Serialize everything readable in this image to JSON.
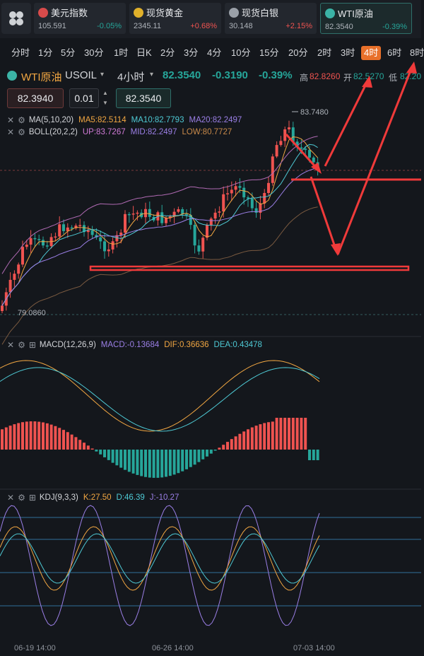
{
  "tickers": [
    {
      "name": "美元指数",
      "price": "105.591",
      "change": "-0.05%",
      "dir": "dn",
      "flag_color": "#d84b4b",
      "icon": "us-flag-icon"
    },
    {
      "name": "现货黄金",
      "price": "2345.11",
      "change": "+0.68%",
      "dir": "up",
      "flag_color": "#e0b02a",
      "icon": "gold-coin-icon"
    },
    {
      "name": "现货白银",
      "price": "30.148",
      "change": "+2.15%",
      "dir": "up",
      "flag_color": "#9aa0a8",
      "icon": "silver-coin-icon"
    },
    {
      "name": "WTI原油",
      "price": "82.3540",
      "change": "-0.39%",
      "dir": "dn",
      "flag_color": "#3bb3a6",
      "icon": "oil-barrel-icon"
    }
  ],
  "periods": [
    "分时",
    "1分",
    "5分",
    "30分",
    "1时",
    "日K",
    "2分",
    "3分",
    "4分",
    "10分",
    "15分",
    "20分",
    "2时",
    "3时",
    "4时",
    "6时",
    "8时"
  ],
  "selected_period": "4时",
  "instrument": {
    "name": "WTI原油",
    "code": "USOIL",
    "interval": "4小时",
    "price": "82.3540",
    "change": "-0.3190",
    "change_pct": "-0.39%",
    "high_label": "高",
    "high": "82.8260",
    "open_label": "开",
    "open": "82.5270",
    "low_label": "低",
    "low": "82.20"
  },
  "order": {
    "sell_price": "82.3940",
    "lot": "0.01",
    "buy_price": "82.3540",
    "inc": "▲",
    "dec": "▼"
  },
  "indicators": {
    "ma": {
      "label": "MA(5,10,20)",
      "ma5": "MA5:82.5114",
      "ma10": "MA10:82.7793",
      "ma20": "MA20:82.2497"
    },
    "boll": {
      "label": "BOLL(20,2,2)",
      "up": "UP:83.7267",
      "mid": "MID:82.2497",
      "low": "LOW:80.7727"
    },
    "macd": {
      "label": "MACD(12,26,9)",
      "macd": "MACD:-0.13684",
      "dif": "DIF:0.36636",
      "dea": "DEA:0.43478"
    },
    "kdj": {
      "label": "KDJ(9,3,3)",
      "k": "K:27.50",
      "d": "D:46.39",
      "j": "J:-10.27"
    }
  },
  "chart_data": {
    "type": "candlestick",
    "price_max_label": "83.7480",
    "price_min_label": "79.0860",
    "x_ticks": [
      "06-19 14:00",
      "06-26 14:00",
      "07-03 14:00"
    ],
    "colors": {
      "up": "#ef5350",
      "down": "#26a69a",
      "ma5": "#f2a742",
      "ma10": "#4ec9d4",
      "ma20": "#9b7fe6",
      "boll": "#b06ab3",
      "annotation": "#f03a3a"
    }
  }
}
